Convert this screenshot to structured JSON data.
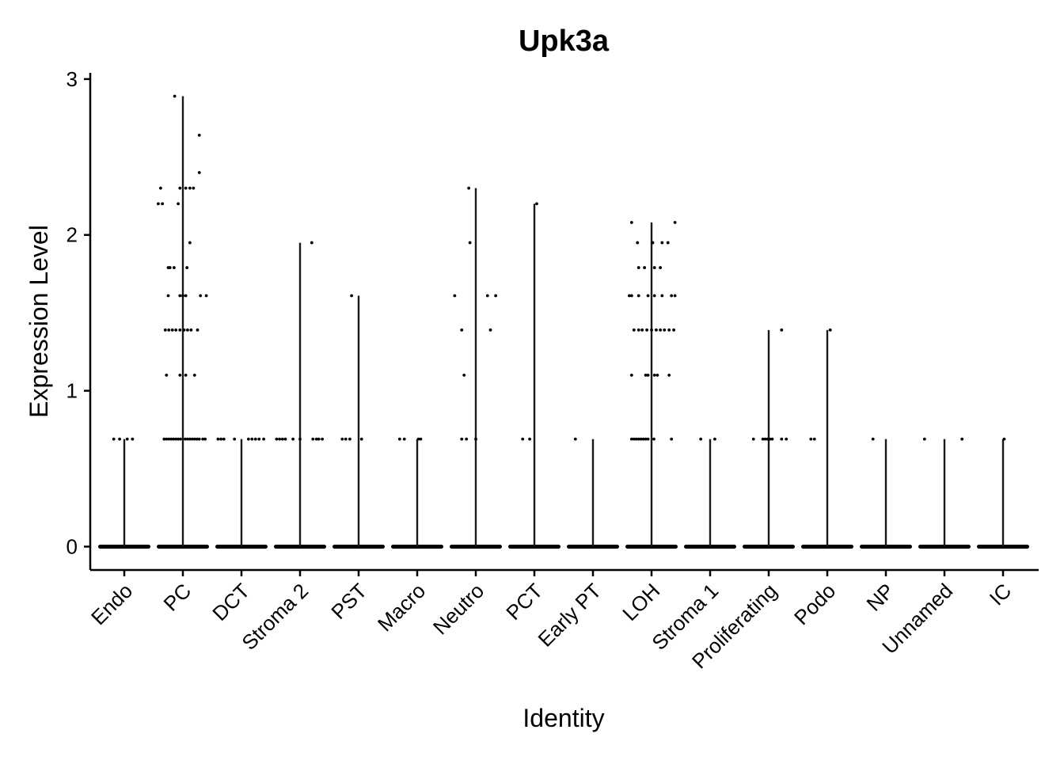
{
  "chart_data": {
    "type": "violin",
    "title": "Upk3a",
    "xlabel": "Identity",
    "ylabel": "Expression Level",
    "ylim": [
      -0.15,
      3.04
    ],
    "yticks": [
      0,
      1,
      2,
      3
    ],
    "grid": false,
    "legend": "none",
    "categories": [
      "Endo",
      "PC",
      "DCT",
      "Stroma 2",
      "PST",
      "Macro",
      "Neutro",
      "PCT",
      "Early PT",
      "LOH",
      "Stroma 1",
      "Proliferating",
      "Podo",
      "NP",
      "Unnamed",
      "IC"
    ],
    "max_values": [
      0.69,
      2.89,
      0.69,
      1.95,
      1.61,
      0.69,
      2.3,
      2.2,
      0.69,
      2.08,
      0.69,
      1.39,
      1.39,
      0.69,
      0.69,
      0.69
    ],
    "points": [
      [
        [
          -0.18,
          0.69
        ],
        [
          -0.08,
          0.69
        ],
        [
          0.05,
          0.69
        ],
        [
          0.14,
          0.69
        ]
      ],
      [
        [
          -0.42,
          2.2
        ],
        [
          -0.38,
          2.3
        ],
        [
          -0.35,
          2.2
        ],
        [
          -0.14,
          2.89
        ],
        [
          -0.08,
          2.2
        ],
        [
          -0.05,
          2.3
        ],
        [
          0.05,
          2.3
        ],
        [
          0.12,
          2.3
        ],
        [
          0.18,
          2.3
        ],
        [
          0.28,
          2.64
        ],
        [
          0.28,
          2.4
        ],
        [
          0.12,
          1.95
        ],
        [
          -0.25,
          1.79
        ],
        [
          -0.22,
          1.79
        ],
        [
          -0.15,
          1.79
        ],
        [
          0.07,
          1.79
        ],
        [
          -0.25,
          1.61
        ],
        [
          -0.05,
          1.61
        ],
        [
          0.0,
          1.61
        ],
        [
          0.05,
          1.61
        ],
        [
          0.3,
          1.61
        ],
        [
          0.4,
          1.61
        ],
        [
          -0.3,
          1.39
        ],
        [
          -0.24,
          1.39
        ],
        [
          -0.18,
          1.39
        ],
        [
          -0.12,
          1.39
        ],
        [
          -0.05,
          1.39
        ],
        [
          0.02,
          1.39
        ],
        [
          0.08,
          1.39
        ],
        [
          0.14,
          1.39
        ],
        [
          0.25,
          1.39
        ],
        [
          -0.28,
          1.1
        ],
        [
          -0.05,
          1.1
        ],
        [
          0.05,
          1.1
        ],
        [
          0.2,
          1.1
        ],
        [
          -0.32,
          0.69
        ],
        [
          -0.28,
          0.69
        ],
        [
          -0.24,
          0.69
        ],
        [
          -0.2,
          0.69
        ],
        [
          -0.16,
          0.69
        ],
        [
          -0.12,
          0.69
        ],
        [
          -0.08,
          0.69
        ],
        [
          -0.04,
          0.69
        ],
        [
          0.04,
          0.69
        ],
        [
          0.08,
          0.69
        ],
        [
          0.12,
          0.69
        ],
        [
          0.16,
          0.69
        ],
        [
          0.2,
          0.69
        ],
        [
          0.24,
          0.69
        ],
        [
          0.28,
          0.69
        ],
        [
          0.34,
          0.69
        ],
        [
          0.38,
          0.69
        ]
      ],
      [
        [
          -0.4,
          0.69
        ],
        [
          -0.35,
          0.69
        ],
        [
          -0.3,
          0.69
        ],
        [
          -0.12,
          0.69
        ],
        [
          0.12,
          0.69
        ],
        [
          0.18,
          0.69
        ],
        [
          0.24,
          0.69
        ],
        [
          0.3,
          0.69
        ],
        [
          0.38,
          0.69
        ]
      ],
      [
        [
          -0.4,
          0.69
        ],
        [
          -0.35,
          0.69
        ],
        [
          -0.3,
          0.69
        ],
        [
          -0.25,
          0.69
        ],
        [
          -0.12,
          0.69
        ],
        [
          0.0,
          0.69
        ],
        [
          0.22,
          0.69
        ],
        [
          0.28,
          0.69
        ],
        [
          0.32,
          0.69
        ],
        [
          0.38,
          0.69
        ],
        [
          0.2,
          1.95
        ]
      ],
      [
        [
          -0.28,
          0.69
        ],
        [
          -0.22,
          0.69
        ],
        [
          -0.15,
          0.69
        ],
        [
          0.05,
          0.69
        ],
        [
          -0.12,
          1.61
        ]
      ],
      [
        [
          -0.3,
          0.69
        ],
        [
          -0.22,
          0.69
        ],
        [
          0.02,
          0.69
        ],
        [
          0.06,
          0.69
        ]
      ],
      [
        [
          -0.12,
          2.3
        ],
        [
          -0.1,
          1.95
        ],
        [
          -0.36,
          1.61
        ],
        [
          0.2,
          1.61
        ],
        [
          0.34,
          1.61
        ],
        [
          -0.24,
          1.39
        ],
        [
          0.25,
          1.39
        ],
        [
          -0.2,
          1.1
        ],
        [
          -0.24,
          0.69
        ],
        [
          -0.16,
          0.69
        ],
        [
          0.0,
          0.69
        ]
      ],
      [
        [
          -0.2,
          0.69
        ],
        [
          -0.08,
          0.69
        ],
        [
          0.04,
          2.2
        ]
      ],
      [
        [
          -0.3,
          0.69
        ]
      ],
      [
        [
          -0.34,
          2.08
        ],
        [
          0.4,
          2.08
        ],
        [
          -0.24,
          1.95
        ],
        [
          0.02,
          1.95
        ],
        [
          0.18,
          1.95
        ],
        [
          0.28,
          1.95
        ],
        [
          -0.22,
          1.79
        ],
        [
          -0.12,
          1.79
        ],
        [
          0.05,
          1.79
        ],
        [
          0.15,
          1.79
        ],
        [
          -0.38,
          1.61
        ],
        [
          -0.34,
          1.61
        ],
        [
          -0.22,
          1.61
        ],
        [
          -0.06,
          1.61
        ],
        [
          0.05,
          1.61
        ],
        [
          0.18,
          1.61
        ],
        [
          0.34,
          1.61
        ],
        [
          0.4,
          1.61
        ],
        [
          -0.3,
          1.39
        ],
        [
          -0.22,
          1.39
        ],
        [
          -0.16,
          1.39
        ],
        [
          -0.08,
          1.39
        ],
        [
          0.0,
          1.39
        ],
        [
          0.08,
          1.39
        ],
        [
          0.15,
          1.39
        ],
        [
          0.22,
          1.39
        ],
        [
          0.3,
          1.39
        ],
        [
          0.38,
          1.39
        ],
        [
          -0.34,
          1.1
        ],
        [
          -0.1,
          1.1
        ],
        [
          -0.06,
          1.1
        ],
        [
          0.05,
          1.1
        ],
        [
          0.1,
          1.1
        ],
        [
          0.3,
          1.1
        ],
        [
          -0.34,
          0.69
        ],
        [
          -0.3,
          0.69
        ],
        [
          -0.26,
          0.69
        ],
        [
          -0.22,
          0.69
        ],
        [
          -0.18,
          0.69
        ],
        [
          -0.14,
          0.69
        ],
        [
          -0.1,
          0.69
        ],
        [
          -0.06,
          0.69
        ],
        [
          0.04,
          0.69
        ],
        [
          0.34,
          0.69
        ]
      ],
      [
        [
          -0.16,
          0.69
        ],
        [
          0.08,
          0.69
        ]
      ],
      [
        [
          -0.26,
          0.69
        ],
        [
          -0.1,
          0.69
        ],
        [
          -0.06,
          0.69
        ],
        [
          -0.02,
          0.69
        ],
        [
          0.02,
          0.69
        ],
        [
          0.06,
          0.69
        ],
        [
          0.22,
          0.69
        ],
        [
          0.3,
          0.69
        ],
        [
          0.22,
          1.39
        ]
      ],
      [
        [
          -0.28,
          0.69
        ],
        [
          -0.22,
          0.69
        ],
        [
          0.05,
          1.39
        ]
      ],
      [
        [
          -0.22,
          0.69
        ]
      ],
      [
        [
          -0.34,
          0.69
        ],
        [
          0.3,
          0.69
        ]
      ],
      [
        [
          0.02,
          0.69
        ]
      ]
    ]
  }
}
